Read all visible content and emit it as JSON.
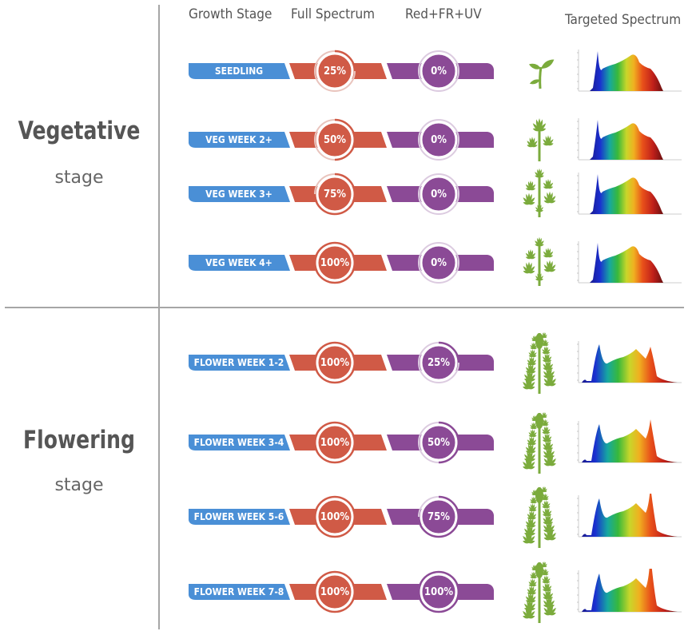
{
  "headers": {
    "growth_stage": "Growth Stage",
    "full_spectrum": "Full Spectrum",
    "red_fr_uv": "Red+FR+UV",
    "targeted_spectrum": "Targeted Spectrum"
  },
  "sections": {
    "vegetative": {
      "title": "Vegetative",
      "subtitle": "stage"
    },
    "flowering": {
      "title": "Flowering",
      "subtitle": "stage"
    }
  },
  "colors": {
    "stage_pill": "#4a8fd6",
    "full_spectrum": "#d05a46",
    "red_fr_uv": "#8b4a96",
    "plant": "#7bab3c",
    "divider": "#a6a6a6"
  },
  "rows": [
    {
      "stage": "SEEDLING",
      "full_spectrum": "25%",
      "full_spectrum_level": 25,
      "red_fr_uv": "0%",
      "red_fr_uv_level": 0,
      "plant_icon": "seedling-icon"
    },
    {
      "stage": "VEG WEEK 2+",
      "full_spectrum": "50%",
      "full_spectrum_level": 50,
      "red_fr_uv": "0%",
      "red_fr_uv_level": 0,
      "plant_icon": "young-plant-icon"
    },
    {
      "stage": "VEG WEEK 3+",
      "full_spectrum": "75%",
      "full_spectrum_level": 75,
      "red_fr_uv": "0%",
      "red_fr_uv_level": 0,
      "plant_icon": "veg-plant-icon"
    },
    {
      "stage": "VEG WEEK 4+",
      "full_spectrum": "100%",
      "full_spectrum_level": 100,
      "red_fr_uv": "0%",
      "red_fr_uv_level": 0,
      "plant_icon": "veg-plant-icon"
    },
    {
      "stage": "FLOWER WEEK  1-2",
      "full_spectrum": "100%",
      "full_spectrum_level": 100,
      "red_fr_uv": "25%",
      "red_fr_uv_level": 25,
      "plant_icon": "flowering-plant-icon"
    },
    {
      "stage": "FLOWER WEEK 3-4",
      "full_spectrum": "100%",
      "full_spectrum_level": 100,
      "red_fr_uv": "50%",
      "red_fr_uv_level": 50,
      "plant_icon": "flowering-plant-icon"
    },
    {
      "stage": "FLOWER WEEK 5-6",
      "full_spectrum": "100%",
      "full_spectrum_level": 100,
      "red_fr_uv": "75%",
      "red_fr_uv_level": 75,
      "plant_icon": "flowering-plant-icon"
    },
    {
      "stage": "FLOWER WEEK 7-8",
      "full_spectrum": "100%",
      "full_spectrum_level": 100,
      "red_fr_uv": "100%",
      "red_fr_uv_level": 100,
      "plant_icon": "flowering-plant-icon"
    }
  ]
}
